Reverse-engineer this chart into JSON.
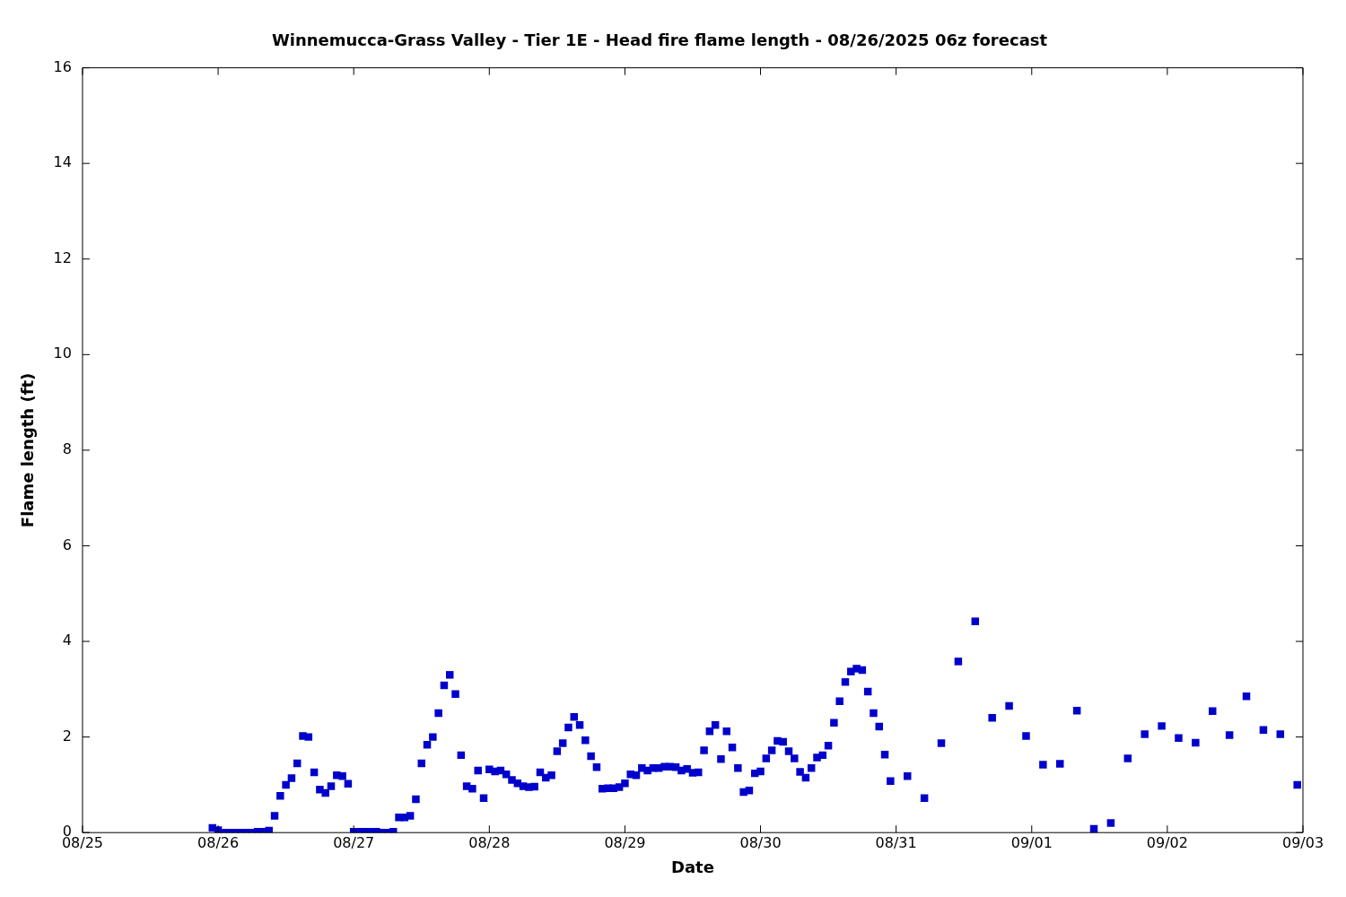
{
  "chart_data": {
    "type": "scatter",
    "title": "Winnemucca-Grass Valley - Tier 1E - Head fire flame length - 08/26/2025 06z forecast",
    "xlabel": "Date",
    "ylabel": "Flame length (ft)",
    "x": [
      "2025-08-25T23:00",
      "2025-08-26T00:00",
      "2025-08-26T01:00",
      "2025-08-26T02:00",
      "2025-08-26T03:00",
      "2025-08-26T04:00",
      "2025-08-26T05:00",
      "2025-08-26T06:00",
      "2025-08-26T07:00",
      "2025-08-26T08:00",
      "2025-08-26T09:00",
      "2025-08-26T10:00",
      "2025-08-26T11:00",
      "2025-08-26T12:00",
      "2025-08-26T13:00",
      "2025-08-26T14:00",
      "2025-08-26T15:00",
      "2025-08-26T16:00",
      "2025-08-26T17:00",
      "2025-08-26T18:00",
      "2025-08-26T19:00",
      "2025-08-26T20:00",
      "2025-08-26T21:00",
      "2025-08-26T22:00",
      "2025-08-26T23:00",
      "2025-08-27T00:00",
      "2025-08-27T01:00",
      "2025-08-27T02:00",
      "2025-08-27T03:00",
      "2025-08-27T04:00",
      "2025-08-27T05:00",
      "2025-08-27T06:00",
      "2025-08-27T07:00",
      "2025-08-27T08:00",
      "2025-08-27T09:00",
      "2025-08-27T10:00",
      "2025-08-27T11:00",
      "2025-08-27T12:00",
      "2025-08-27T13:00",
      "2025-08-27T14:00",
      "2025-08-27T15:00",
      "2025-08-27T16:00",
      "2025-08-27T17:00",
      "2025-08-27T18:00",
      "2025-08-27T19:00",
      "2025-08-27T20:00",
      "2025-08-27T21:00",
      "2025-08-27T22:00",
      "2025-08-27T23:00",
      "2025-08-28T00:00",
      "2025-08-28T01:00",
      "2025-08-28T02:00",
      "2025-08-28T03:00",
      "2025-08-28T04:00",
      "2025-08-28T05:00",
      "2025-08-28T06:00",
      "2025-08-28T07:00",
      "2025-08-28T08:00",
      "2025-08-28T09:00",
      "2025-08-28T10:00",
      "2025-08-28T11:00",
      "2025-08-28T12:00",
      "2025-08-28T13:00",
      "2025-08-28T14:00",
      "2025-08-28T15:00",
      "2025-08-28T16:00",
      "2025-08-28T17:00",
      "2025-08-28T18:00",
      "2025-08-28T19:00",
      "2025-08-28T20:00",
      "2025-08-28T21:00",
      "2025-08-28T22:00",
      "2025-08-28T23:00",
      "2025-08-29T00:00",
      "2025-08-29T01:00",
      "2025-08-29T02:00",
      "2025-08-29T03:00",
      "2025-08-29T04:00",
      "2025-08-29T05:00",
      "2025-08-29T06:00",
      "2025-08-29T07:00",
      "2025-08-29T08:00",
      "2025-08-29T09:00",
      "2025-08-29T10:00",
      "2025-08-29T11:00",
      "2025-08-29T12:00",
      "2025-08-29T13:00",
      "2025-08-29T14:00",
      "2025-08-29T15:00",
      "2025-08-29T16:00",
      "2025-08-29T17:00",
      "2025-08-29T18:00",
      "2025-08-29T19:00",
      "2025-08-29T20:00",
      "2025-08-29T21:00",
      "2025-08-29T22:00",
      "2025-08-29T23:00",
      "2025-08-30T00:00",
      "2025-08-30T01:00",
      "2025-08-30T02:00",
      "2025-08-30T03:00",
      "2025-08-30T04:00",
      "2025-08-30T05:00",
      "2025-08-30T06:00",
      "2025-08-30T07:00",
      "2025-08-30T08:00",
      "2025-08-30T09:00",
      "2025-08-30T10:00",
      "2025-08-30T11:00",
      "2025-08-30T12:00",
      "2025-08-30T13:00",
      "2025-08-30T14:00",
      "2025-08-30T15:00",
      "2025-08-30T16:00",
      "2025-08-30T17:00",
      "2025-08-30T18:00",
      "2025-08-30T19:00",
      "2025-08-30T20:00",
      "2025-08-30T21:00",
      "2025-08-30T22:00",
      "2025-08-30T23:00",
      "2025-08-31T02:00",
      "2025-08-31T05:00",
      "2025-08-31T08:00",
      "2025-08-31T11:00",
      "2025-08-31T14:00",
      "2025-08-31T17:00",
      "2025-08-31T20:00",
      "2025-08-31T23:00",
      "2025-09-01T02:00",
      "2025-09-01T05:00",
      "2025-09-01T08:00",
      "2025-09-01T11:00",
      "2025-09-01T14:00",
      "2025-09-01T17:00",
      "2025-09-01T20:00",
      "2025-09-01T23:00",
      "2025-09-02T02:00",
      "2025-09-02T05:00",
      "2025-09-02T08:00",
      "2025-09-02T11:00",
      "2025-09-02T14:00",
      "2025-09-02T17:00",
      "2025-09-02T20:00",
      "2025-09-02T23:00"
    ],
    "values": [
      0.1,
      0.05,
      0,
      0,
      0,
      0,
      0,
      0,
      0.02,
      0.02,
      0.04,
      0.35,
      0.77,
      1.0,
      1.14,
      1.45,
      2.02,
      2.0,
      1.26,
      0.9,
      0.83,
      0.97,
      1.2,
      1.18,
      1.02,
      0.02,
      0.02,
      0.02,
      0.02,
      0.02,
      0,
      0,
      0.02,
      0.32,
      0.32,
      0.35,
      0.7,
      1.45,
      1.84,
      2.0,
      2.5,
      3.08,
      3.3,
      2.9,
      1.62,
      0.97,
      0.92,
      1.3,
      0.72,
      1.32,
      1.28,
      1.3,
      1.22,
      1.1,
      1.03,
      0.97,
      0.95,
      0.96,
      1.26,
      1.15,
      1.2,
      1.7,
      1.87,
      2.2,
      2.42,
      2.25,
      1.93,
      1.6,
      1.37,
      0.92,
      0.93,
      0.93,
      0.95,
      1.03,
      1.22,
      1.2,
      1.35,
      1.3,
      1.35,
      1.35,
      1.38,
      1.38,
      1.37,
      1.3,
      1.33,
      1.25,
      1.26,
      1.72,
      2.12,
      2.25,
      1.54,
      2.12,
      1.78,
      1.35,
      0.85,
      0.88,
      1.24,
      1.28,
      1.55,
      1.72,
      1.92,
      1.9,
      1.7,
      1.55,
      1.27,
      1.15,
      1.35,
      1.57,
      1.62,
      1.82,
      2.3,
      2.75,
      3.15,
      3.37,
      3.43,
      3.4,
      2.95,
      2.5,
      2.22,
      1.63,
      1.08,
      1.18,
      0.72,
      1.87,
      3.58,
      4.42,
      2.4,
      2.65,
      2.02,
      1.42,
      1.44,
      2.55,
      0.08,
      0.2,
      1.55,
      2.06,
      2.23,
      1.98,
      1.88,
      2.54,
      2.04,
      2.85,
      2.15,
      2.06,
      1.0
    ],
    "color": "#0000cc",
    "marker": "square",
    "xlim": [
      "2025-08-25",
      "2025-09-03"
    ],
    "xticks": [
      {
        "value": "2025-08-25",
        "label": "08/25"
      },
      {
        "value": "2025-08-26",
        "label": "08/26"
      },
      {
        "value": "2025-08-27",
        "label": "08/27"
      },
      {
        "value": "2025-08-28",
        "label": "08/28"
      },
      {
        "value": "2025-08-29",
        "label": "08/29"
      },
      {
        "value": "2025-08-30",
        "label": "08/30"
      },
      {
        "value": "2025-08-31",
        "label": "08/31"
      },
      {
        "value": "2025-09-01",
        "label": "09/01"
      },
      {
        "value": "2025-09-02",
        "label": "09/02"
      },
      {
        "value": "2025-09-03",
        "label": "09/03"
      }
    ],
    "ylim": [
      0,
      16
    ],
    "yticks": [
      0,
      2,
      4,
      6,
      8,
      10,
      12,
      14,
      16
    ]
  }
}
